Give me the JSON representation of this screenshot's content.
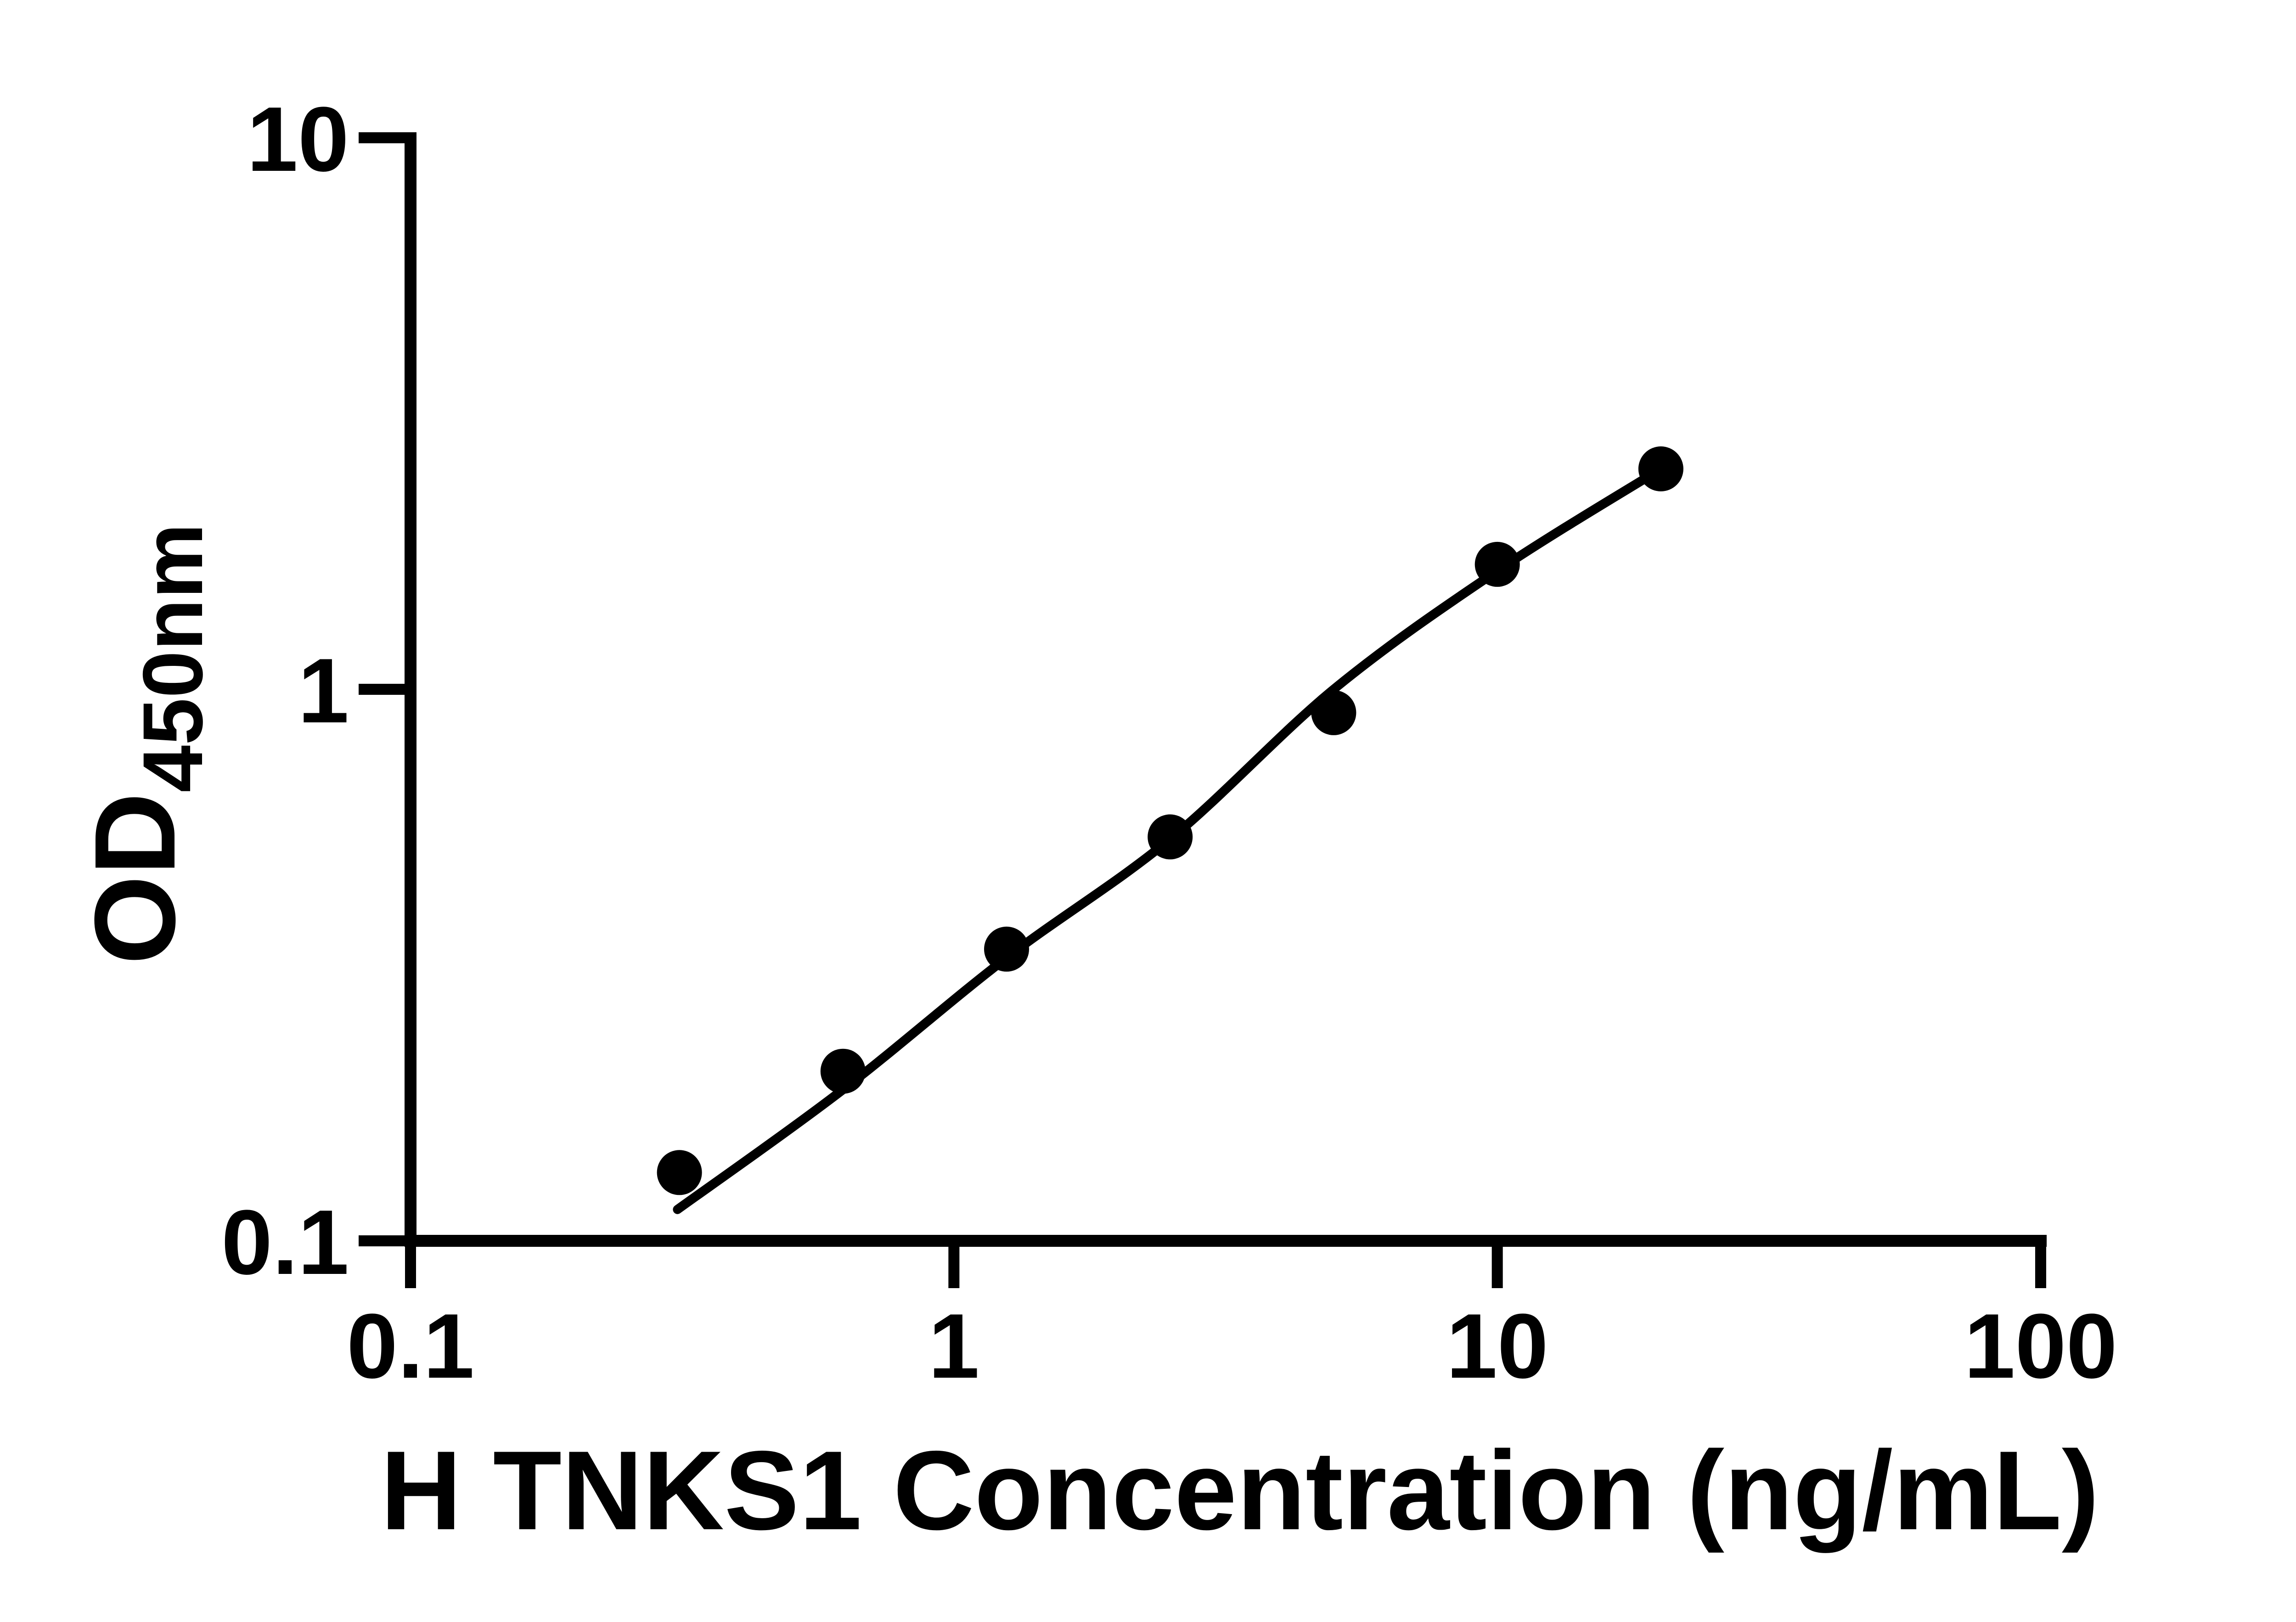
{
  "chart_data": {
    "type": "scatter",
    "title": "",
    "xlabel": "H TNKS1 Concentration (ng/mL)",
    "ylabel": "OD450nm",
    "ylabel_parts": {
      "main": "OD",
      "sub": "450nm"
    },
    "x_scale": "log",
    "y_scale": "log",
    "xlim": [
      0.1,
      100
    ],
    "ylim": [
      0.1,
      10
    ],
    "x_ticks": [
      {
        "value": 0.1,
        "label": "0.1"
      },
      {
        "value": 1,
        "label": "1"
      },
      {
        "value": 10,
        "label": "10"
      },
      {
        "value": 100,
        "label": "100"
      }
    ],
    "y_ticks": [
      {
        "value": 10,
        "label": "10"
      },
      {
        "value": 1,
        "label": "1"
      },
      {
        "value": 0.1,
        "label": "0.1"
      }
    ],
    "grid": false,
    "legend": "none",
    "colors": {
      "background": "#ffffff",
      "axes": "#000000",
      "points": "#000000",
      "curve": "#000000",
      "text": "#000000"
    },
    "series": [
      {
        "name": "standards",
        "type": "scatter",
        "marker": "filled-circle",
        "x": [
          0.3125,
          0.625,
          1.25,
          2.5,
          5,
          10,
          20
        ],
        "y": [
          0.133,
          0.203,
          0.338,
          0.54,
          0.907,
          1.685,
          2.51
        ]
      },
      {
        "name": "fitted-curve",
        "type": "line",
        "x": [
          0.31,
          0.625,
          1.25,
          2.5,
          5,
          10,
          20
        ],
        "y": [
          0.114,
          0.188,
          0.326,
          0.535,
          1.0,
          1.64,
          2.51
        ]
      }
    ]
  }
}
